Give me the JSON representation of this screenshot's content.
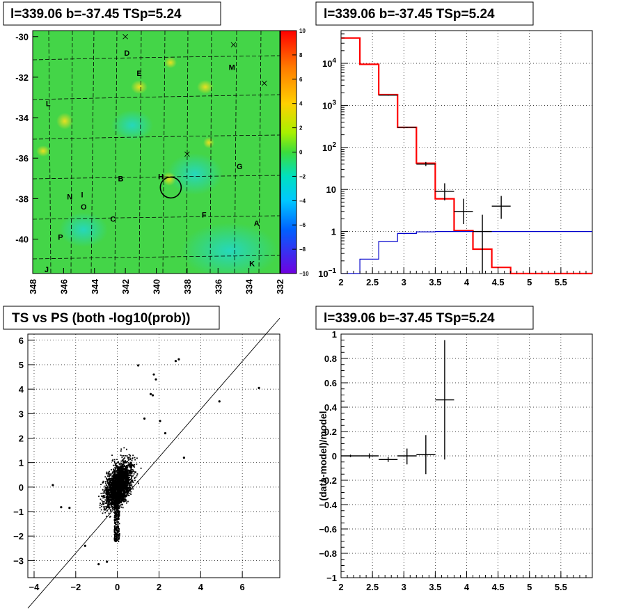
{
  "chart_data": [
    {
      "type": "heatmap",
      "title": "l=339.06 b=-37.45 TSp=5.24",
      "xlim": [
        348,
        332
      ],
      "ylim": [
        -41.7,
        -29.7
      ],
      "x_ticks": [
        "348",
        "346",
        "344",
        "342",
        "340",
        "338",
        "336",
        "334",
        "332"
      ],
      "y_ticks": [
        "-30",
        "-32",
        "-34",
        "-36",
        "-38",
        "-40"
      ],
      "colorbar": {
        "range": [
          -10,
          10
        ],
        "ticks": [
          "10",
          "8",
          "6",
          "4",
          "2",
          "0",
          "−2",
          "−4",
          "−6",
          "−8",
          "−10"
        ]
      },
      "labels": [
        {
          "text": "D",
          "l": 341.9,
          "b": -30.8
        },
        {
          "text": "E",
          "l": 341.1,
          "b": -31.8
        },
        {
          "text": "M",
          "l": 335.1,
          "b": -31.5
        },
        {
          "text": "L",
          "l": 347.0,
          "b": -33.3
        },
        {
          "text": "G",
          "l": 334.6,
          "b": -36.4
        },
        {
          "text": "B",
          "l": 342.3,
          "b": -37.0
        },
        {
          "text": "H",
          "l": 339.7,
          "b": -36.9
        },
        {
          "text": "N",
          "l": 345.6,
          "b": -37.9
        },
        {
          "text": "I",
          "l": 344.8,
          "b": -37.8
        },
        {
          "text": "O",
          "l": 344.7,
          "b": -38.4
        },
        {
          "text": "C",
          "l": 342.8,
          "b": -39.0
        },
        {
          "text": "F",
          "l": 336.9,
          "b": -38.8
        },
        {
          "text": "A",
          "l": 333.5,
          "b": -39.2
        },
        {
          "text": "P",
          "l": 346.2,
          "b": -39.9
        },
        {
          "text": "J",
          "l": 347.1,
          "b": -41.5
        },
        {
          "text": "K",
          "l": 333.8,
          "b": -41.2
        }
      ],
      "crosses": [
        {
          "l": 342.0,
          "b": -30.0
        },
        {
          "l": 335.0,
          "b": -30.4
        },
        {
          "l": 333.0,
          "b": -32.3
        },
        {
          "l": 338.0,
          "b": -35.8
        }
      ],
      "source_circle": {
        "l": 339.06,
        "b": -37.45
      }
    },
    {
      "type": "line",
      "title": "l=339.06 b=-37.45 TSp=5.24",
      "xlim": [
        2,
        6
      ],
      "ylim": [
        0.1,
        60000
      ],
      "yscale": "log",
      "x_ticks": [
        "2",
        "2.5",
        "3",
        "3.5",
        "4",
        "4.5",
        "5",
        "5.5"
      ],
      "y_ticks": [
        {
          "v": 0.1,
          "base": "10",
          "exp": "−1"
        },
        {
          "v": 1,
          "base": "1",
          "exp": ""
        },
        {
          "v": 10,
          "base": "10",
          "exp": ""
        },
        {
          "v": 100,
          "base": "10",
          "exp": "2"
        },
        {
          "v": 1000,
          "base": "10",
          "exp": "3"
        },
        {
          "v": 10000,
          "base": "10",
          "exp": "4"
        }
      ],
      "bin_edges": [
        2.0,
        2.3,
        2.6,
        2.9,
        3.2,
        3.5,
        3.8,
        4.1,
        4.4,
        4.7,
        5.0,
        5.3,
        5.6,
        6.0
      ],
      "series": [
        {
          "color": "#ff0000",
          "values": [
            40000,
            9500,
            1800,
            300,
            42,
            6,
            1.05,
            0.38,
            0.14,
            0.1,
            0.1,
            0.1,
            0.1
          ]
        },
        {
          "color": "#0000cc",
          "values": [
            0.1,
            0.22,
            0.58,
            0.9,
            0.98,
            1.0,
            1.0,
            1.0,
            1.0,
            1.0,
            1.0,
            1.0,
            1.0
          ]
        }
      ],
      "points": [
        {
          "x": 2.75,
          "y": 1750,
          "ylo": 1700,
          "yhi": 1800,
          "xerr": 0.15
        },
        {
          "x": 3.05,
          "y": 300,
          "ylo": 290,
          "yhi": 310,
          "xerr": 0.15
        },
        {
          "x": 3.35,
          "y": 40,
          "ylo": 36,
          "yhi": 45,
          "xerr": 0.15
        },
        {
          "x": 3.65,
          "y": 9,
          "ylo": 5.5,
          "yhi": 14,
          "xerr": 0.15
        },
        {
          "x": 3.95,
          "y": 3,
          "ylo": 1.5,
          "yhi": 6,
          "xerr": 0.15
        },
        {
          "x": 4.25,
          "y": 1,
          "ylo": 0.1,
          "yhi": 2.5,
          "xerr": 0.15
        },
        {
          "x": 4.55,
          "y": 4,
          "ylo": 2,
          "yhi": 7,
          "xerr": 0.15
        }
      ]
    },
    {
      "type": "scatter",
      "title": "TS vs PS (both -log10(prob))",
      "xlim": [
        -4.3,
        7.8
      ],
      "ylim": [
        -3.7,
        6.25
      ],
      "x_ticks": [
        "−4",
        "−2",
        "0",
        "2",
        "4",
        "6"
      ],
      "y_ticks": [
        "−3",
        "−2",
        "−1",
        "0",
        "1",
        "2",
        "3",
        "4",
        "5",
        "6"
      ],
      "diagonal": {
        "x0": -4.3,
        "y0": -4.95,
        "x1": 7.8,
        "y1": 6.9
      },
      "outliers": [
        [
          1.0,
          4.97
        ],
        [
          2.8,
          5.15
        ],
        [
          2.95,
          5.22
        ],
        [
          1.75,
          4.6
        ],
        [
          1.85,
          4.4
        ],
        [
          1.6,
          3.8
        ],
        [
          1.7,
          3.75
        ],
        [
          4.9,
          3.5
        ],
        [
          6.8,
          4.05
        ],
        [
          -3.1,
          0.08
        ],
        [
          -2.7,
          -0.82
        ],
        [
          -2.3,
          -0.85
        ],
        [
          1.3,
          2.8
        ],
        [
          2.05,
          2.7
        ],
        [
          2.3,
          2.2
        ],
        [
          3.2,
          1.2
        ],
        [
          -1.55,
          -2.4
        ],
        [
          -0.9,
          -3.15
        ],
        [
          -0.5,
          -3.05
        ]
      ]
    },
    {
      "type": "line",
      "title": "l=339.06 b=-37.45 TSp=5.24",
      "xlim": [
        2,
        6
      ],
      "ylim": [
        -1,
        1
      ],
      "ylabel": "(data-model)/model",
      "x_ticks": [
        "2",
        "2.5",
        "3",
        "3.5",
        "4",
        "4.5",
        "5",
        "5.5"
      ],
      "y_ticks": [
        "−1",
        "−0.8",
        "−0.6",
        "−0.4",
        "−0.2",
        "0",
        "0.2",
        "0.4",
        "0.6",
        "0.8",
        "1"
      ],
      "points": [
        {
          "x": 2.15,
          "y": 0.0,
          "ylo": -0.01,
          "yhi": 0.01,
          "xerr": 0.15
        },
        {
          "x": 2.45,
          "y": 0.0,
          "ylo": -0.02,
          "yhi": 0.02,
          "xerr": 0.15
        },
        {
          "x": 2.75,
          "y": -0.03,
          "ylo": -0.05,
          "yhi": -0.01,
          "xerr": 0.15
        },
        {
          "x": 3.05,
          "y": 0.0,
          "ylo": -0.07,
          "yhi": 0.06,
          "xerr": 0.15
        },
        {
          "x": 3.35,
          "y": 0.01,
          "ylo": -0.15,
          "yhi": 0.17,
          "xerr": 0.15
        },
        {
          "x": 3.65,
          "y": 0.46,
          "ylo": -0.03,
          "yhi": 0.95,
          "xerr": 0.15
        }
      ]
    }
  ]
}
